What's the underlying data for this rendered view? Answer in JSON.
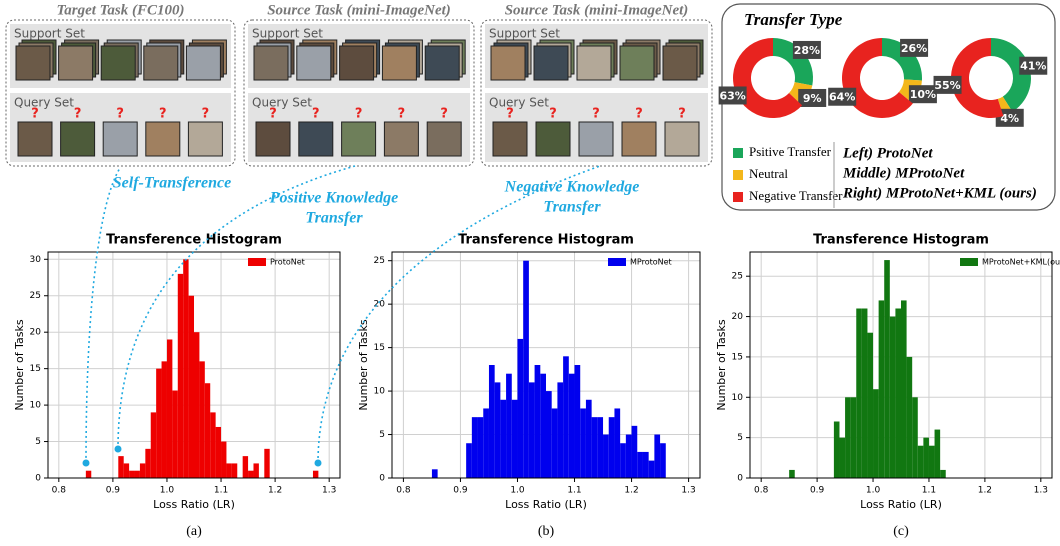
{
  "panels": [
    {
      "title": "Target Task (FC100)",
      "support_label": "Support Set",
      "query_label": "Query Set",
      "query_mark": "?"
    },
    {
      "title": "Source Task (mini-ImageNet)",
      "support_label": "Support Set",
      "query_label": "Query Set",
      "query_mark": "?"
    },
    {
      "title": "Source Task (mini-ImageNet)",
      "support_label": "Support Set",
      "query_label": "Query Set",
      "query_mark": "?"
    }
  ],
  "annotations": [
    {
      "lines": [
        "Self-Transference"
      ]
    },
    {
      "lines": [
        "Positive Knowledge",
        "Transfer"
      ]
    },
    {
      "lines": [
        "Negative Knowledge",
        "Transfer"
      ]
    }
  ],
  "transfer_type": {
    "title": "Transfer Type",
    "legend": [
      {
        "name": "Psitive Transfer",
        "color": "#1aa65a"
      },
      {
        "name": "Neutral",
        "color": "#f3b71b"
      },
      {
        "name": "Negative Transfer",
        "color": "#e8231f"
      }
    ],
    "models": [
      "Left) ProtoNet",
      "Middle) MProtoNet",
      "Right) MProtoNet+KML (ours)"
    ]
  },
  "captions": [
    "(a)",
    "(b)",
    "(c)"
  ],
  "chart_data": [
    {
      "type": "pie",
      "values": [
        28,
        9,
        63
      ],
      "value_labels": [
        "28%",
        "9%",
        "63%"
      ],
      "colors": [
        "#1aa65a",
        "#f3b71b",
        "#e8231f"
      ]
    },
    {
      "type": "pie",
      "values": [
        26,
        10,
        64
      ],
      "value_labels": [
        "26%",
        "10%",
        "64%"
      ],
      "colors": [
        "#1aa65a",
        "#f3b71b",
        "#e8231f"
      ]
    },
    {
      "type": "pie",
      "values": [
        41,
        4,
        55
      ],
      "value_labels": [
        "41%",
        "4%",
        "55%"
      ],
      "colors": [
        "#1aa65a",
        "#f3b71b",
        "#e8231f"
      ]
    },
    {
      "type": "histogram",
      "title": "Transference Histogram",
      "xlabel": "Loss Ratio (LR)",
      "ylabel": "Number of Tasks",
      "bins": [
        0.85,
        0.86,
        0.87,
        0.88,
        0.89,
        0.9,
        0.91,
        0.92,
        0.93,
        0.94,
        0.95,
        0.96,
        0.97,
        0.98,
        0.99,
        1.0,
        1.01,
        1.02,
        1.03,
        1.04,
        1.05,
        1.06,
        1.07,
        1.08,
        1.09,
        1.1,
        1.11,
        1.12,
        1.13,
        1.14,
        1.15,
        1.16,
        1.17,
        1.18,
        1.19,
        1.2,
        1.21,
        1.22,
        1.23,
        1.24,
        1.25,
        1.26,
        1.27,
        1.28
      ],
      "series": [
        {
          "name": "ProtoNet",
          "color": "#ee0000",
          "values": [
            1,
            0,
            0,
            0,
            0,
            0,
            3,
            2,
            1,
            1,
            2,
            4,
            9,
            15,
            16,
            19,
            12,
            28,
            30,
            25,
            20,
            16,
            13,
            9,
            7,
            5,
            2,
            2,
            0,
            3,
            1,
            2,
            0,
            4,
            0,
            0,
            0,
            0,
            0,
            0,
            0,
            0,
            1
          ]
        }
      ],
      "xlim": [
        0.78,
        1.32
      ],
      "ylim": [
        0,
        31
      ],
      "xticks": [
        0.8,
        0.9,
        {
          "value": 1,
          "label": "1.0"
        },
        1.1,
        1.2,
        1.3
      ],
      "yticks": [
        0,
        5,
        10,
        15,
        20,
        25,
        30
      ],
      "grid": true,
      "legend": "upper right"
    },
    {
      "type": "histogram",
      "title": "Transference Histogram",
      "xlabel": "Loss Ratio (LR)",
      "ylabel": "Number of Tasks",
      "bins": [
        0.85,
        0.86,
        0.87,
        0.88,
        0.89,
        0.9,
        0.91,
        0.92,
        0.93,
        0.94,
        0.95,
        0.96,
        0.97,
        0.98,
        0.99,
        1.0,
        1.01,
        1.02,
        1.03,
        1.04,
        1.05,
        1.06,
        1.07,
        1.08,
        1.09,
        1.1,
        1.11,
        1.12,
        1.13,
        1.14,
        1.15,
        1.16,
        1.17,
        1.18,
        1.19,
        1.2,
        1.21,
        1.22,
        1.23,
        1.24,
        1.25,
        1.26
      ],
      "series": [
        {
          "name": "MProtoNet",
          "color": "#0000ee",
          "values": [
            1,
            0,
            0,
            0,
            0,
            0,
            4,
            7,
            7,
            8,
            13,
            11,
            9,
            12,
            9,
            16,
            25,
            11,
            13,
            12,
            10,
            8,
            11,
            14,
            12,
            13,
            8,
            9,
            7,
            7,
            5,
            7,
            8,
            4,
            5,
            6,
            3,
            3,
            2,
            5,
            4
          ]
        }
      ],
      "xlim": [
        0.78,
        1.32
      ],
      "ylim": [
        0,
        26
      ],
      "xticks": [
        0.8,
        0.9,
        {
          "value": 1,
          "label": "1.0"
        },
        1.1,
        1.2,
        1.3
      ],
      "yticks": [
        0,
        5,
        10,
        15,
        20,
        25
      ],
      "grid": true,
      "legend": "upper right"
    },
    {
      "type": "histogram",
      "title": "Transference Histogram",
      "xlabel": "Loss Ratio (LR)",
      "ylabel": "Number of Tasks",
      "bins": [
        0.85,
        0.86,
        0.87,
        0.88,
        0.89,
        0.9,
        0.91,
        0.92,
        0.93,
        0.94,
        0.95,
        0.96,
        0.97,
        0.98,
        0.99,
        1.0,
        1.01,
        1.02,
        1.03,
        1.04,
        1.05,
        1.06,
        1.07,
        1.08,
        1.09,
        1.1,
        1.11,
        1.12,
        1.13
      ],
      "series": [
        {
          "name": "MProtoNet+KML(ours)",
          "color": "#117711",
          "values": [
            1,
            0,
            0,
            0,
            0,
            0,
            0,
            0,
            7,
            5,
            10,
            10,
            21,
            21,
            18,
            11,
            22,
            27,
            20,
            21,
            22,
            15,
            10,
            4,
            5,
            4,
            6,
            1
          ]
        }
      ],
      "xlim": [
        0.78,
        1.32
      ],
      "ylim": [
        0,
        28
      ],
      "xticks": [
        0.8,
        0.9,
        {
          "value": 1,
          "label": "1.0"
        },
        1.1,
        1.2,
        1.3
      ],
      "yticks": [
        0,
        5,
        10,
        15,
        20,
        25
      ],
      "grid": true,
      "legend": "upper right"
    }
  ]
}
